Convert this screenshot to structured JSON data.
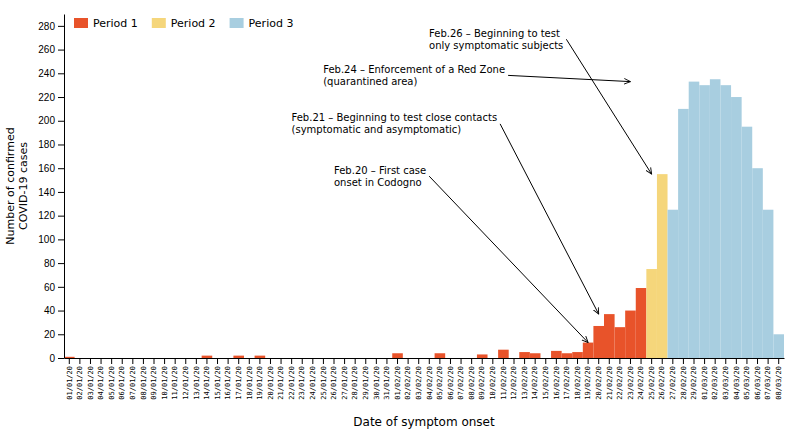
{
  "chart_data": {
    "type": "bar",
    "stacked": true,
    "xlabel": "Date of symptom onset",
    "ylabel": "Number of confirmed\nCOVID-19 cases",
    "ylim": [
      0,
      290
    ],
    "yticks": [
      0,
      20,
      40,
      60,
      80,
      100,
      120,
      140,
      160,
      180,
      200,
      220,
      240,
      260,
      280
    ],
    "grid": false,
    "legend": "upper left",
    "categories": [
      "01/01/20",
      "02/01/20",
      "03/01/20",
      "04/01/20",
      "05/01/20",
      "06/01/20",
      "07/01/20",
      "08/01/20",
      "09/01/20",
      "10/01/20",
      "11/01/20",
      "12/01/20",
      "13/01/20",
      "14/01/20",
      "15/01/20",
      "16/01/20",
      "17/01/20",
      "18/01/20",
      "19/01/20",
      "20/01/20",
      "21/01/20",
      "22/01/20",
      "23/01/20",
      "24/01/20",
      "25/01/20",
      "26/01/20",
      "27/01/20",
      "28/01/20",
      "29/01/20",
      "30/01/20",
      "31/01/20",
      "01/02/20",
      "02/02/20",
      "03/02/20",
      "04/02/20",
      "05/02/20",
      "06/02/20",
      "07/02/20",
      "08/02/20",
      "09/02/20",
      "10/02/20",
      "11/02/20",
      "12/02/20",
      "13/02/20",
      "14/02/20",
      "15/02/20",
      "16/02/20",
      "17/02/20",
      "18/02/20",
      "19/02/20",
      "20/02/20",
      "21/02/20",
      "22/02/20",
      "23/02/20",
      "24/02/20",
      "25/02/20",
      "26/02/20",
      "27/02/20",
      "28/02/20",
      "29/02/20",
      "01/03/20",
      "02/03/20",
      "03/03/20",
      "04/03/20",
      "05/03/20",
      "06/03/20",
      "07/03/20",
      "08/03/20"
    ],
    "series": [
      {
        "name": "Period 1",
        "color": "#E8532A",
        "values": [
          1,
          0,
          0,
          0,
          0,
          0,
          0,
          0,
          0,
          0,
          0,
          0,
          0,
          2,
          0,
          0,
          2,
          0,
          2,
          0,
          0,
          0,
          0,
          0,
          0,
          0,
          0,
          0,
          0,
          0,
          0,
          4,
          0,
          0,
          0,
          4,
          0,
          0,
          0,
          3,
          0,
          7,
          0,
          5,
          4,
          0,
          6,
          4,
          5,
          13,
          27,
          37,
          26,
          40,
          59,
          null,
          null,
          null,
          null,
          null,
          null,
          null,
          null,
          null,
          null,
          null,
          null,
          null
        ]
      },
      {
        "name": "Period 2",
        "color": "#F5D67B",
        "values": [
          null,
          null,
          null,
          null,
          null,
          null,
          null,
          null,
          null,
          null,
          null,
          null,
          null,
          null,
          null,
          null,
          null,
          null,
          null,
          null,
          null,
          null,
          null,
          null,
          null,
          null,
          null,
          null,
          null,
          null,
          null,
          null,
          null,
          null,
          null,
          null,
          null,
          null,
          null,
          null,
          null,
          null,
          null,
          null,
          null,
          null,
          null,
          null,
          null,
          null,
          null,
          null,
          null,
          null,
          null,
          75,
          155,
          null,
          null,
          null,
          null,
          null,
          null,
          null,
          null,
          null,
          null,
          null
        ]
      },
      {
        "name": "Period 3",
        "color": "#A8CEE0",
        "values": [
          null,
          null,
          null,
          null,
          null,
          null,
          null,
          null,
          null,
          null,
          null,
          null,
          null,
          null,
          null,
          null,
          null,
          null,
          null,
          null,
          null,
          null,
          null,
          null,
          null,
          null,
          null,
          null,
          null,
          null,
          null,
          null,
          null,
          null,
          null,
          null,
          null,
          null,
          null,
          null,
          null,
          null,
          null,
          null,
          null,
          null,
          null,
          null,
          null,
          null,
          null,
          null,
          null,
          null,
          null,
          null,
          null,
          125,
          210,
          233,
          230,
          235,
          230,
          220,
          195,
          160,
          125,
          20
        ]
      }
    ],
    "annotations": [
      {
        "text": "Feb.26 – Beginning to test\nonly symptomatic subjects",
        "x": "25/02/20",
        "y": 155
      },
      {
        "text": "Feb.24 – Enforcement of a Red Zone\n(quarantined area)",
        "x": "23/02/20",
        "y": 233
      },
      {
        "text": "Feb.21 – Beginning to test close contacts\n(symptomatic and asymptomatic)",
        "x": "20/02/20",
        "y": 37
      },
      {
        "text": "Feb.20 – First case\nonset in Codogno",
        "x": "19/02/20",
        "y": 13
      }
    ]
  }
}
